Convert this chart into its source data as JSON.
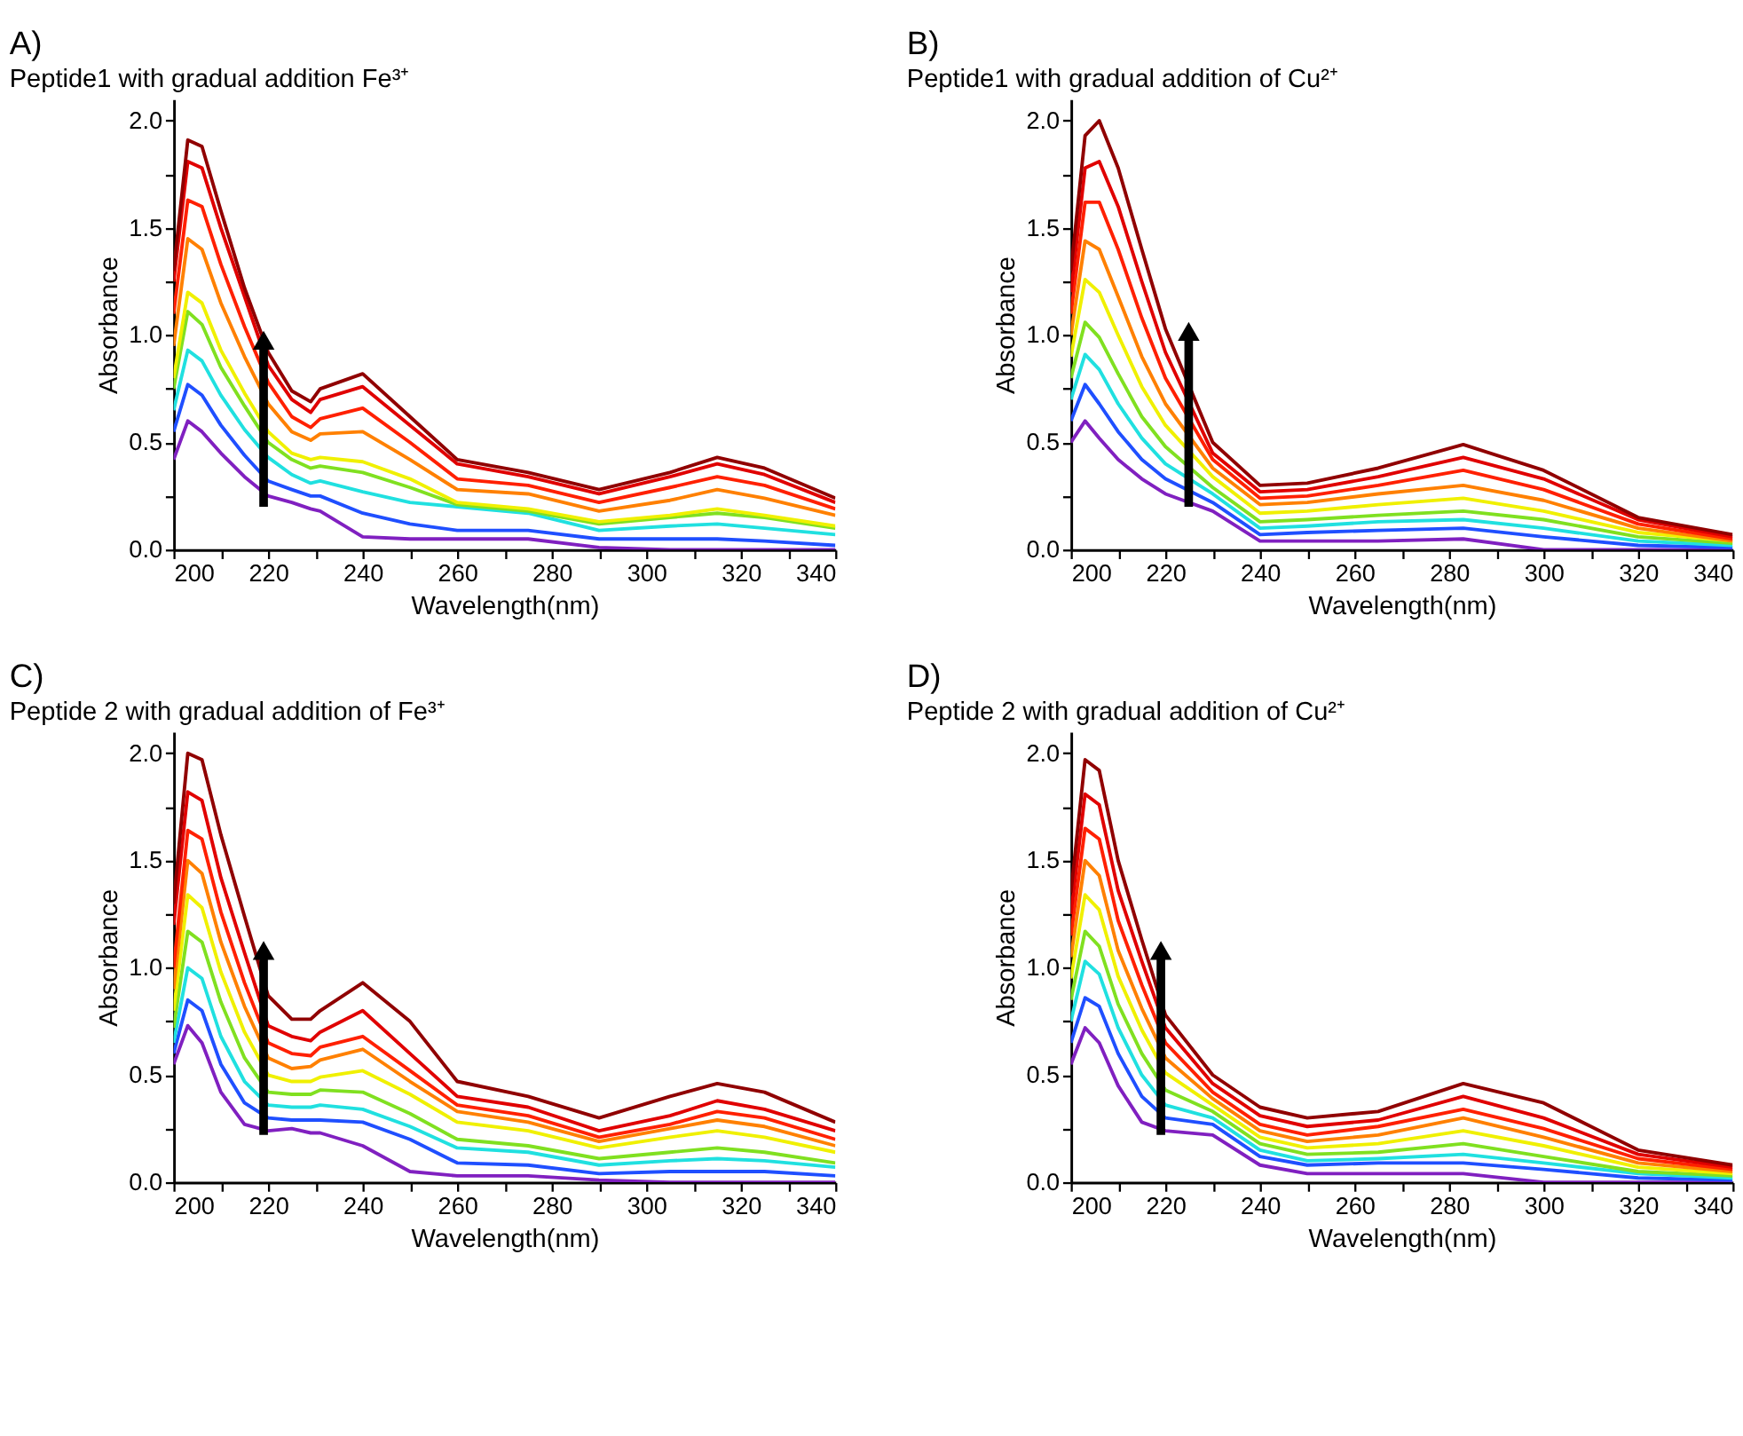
{
  "chart_data": [
    {
      "type": "line",
      "title": "A)",
      "subtitle": "Peptide1 with gradual addition Fe³⁺",
      "xlabel": "Wavelength(nm)",
      "ylabel": "Absorbance",
      "grid": false,
      "xlim": [
        200,
        340
      ],
      "ylim": [
        0,
        2.1
      ],
      "xticks": [
        200,
        {
          "value": 210,
          "label": null
        },
        220,
        {
          "value": 230,
          "label": null
        },
        240,
        {
          "value": 250,
          "label": null
        },
        260,
        {
          "value": 270,
          "label": null
        },
        280,
        {
          "value": 290,
          "label": null
        },
        300,
        {
          "value": 310,
          "label": null
        },
        320,
        {
          "value": 330,
          "label": null
        },
        340
      ],
      "yticks": [
        {
          "value": 0,
          "label": "0.0"
        },
        {
          "value": 0.25,
          "label": null
        },
        {
          "value": 0.5,
          "label": "0.5"
        },
        {
          "value": 0.75,
          "label": null
        },
        {
          "value": 1,
          "label": "1.0"
        },
        {
          "value": 1.25,
          "label": null
        },
        {
          "value": 1.5,
          "label": "1.5"
        },
        {
          "value": 1.75,
          "label": null
        },
        {
          "value": 2,
          "label": "2.0"
        }
      ],
      "x": [
        200,
        203,
        206,
        210,
        215,
        220,
        225,
        229,
        231,
        240,
        250,
        260,
        275,
        290,
        305,
        315,
        325,
        340
      ],
      "series": [
        {
          "color": "#8020c0",
          "values": [
            0.42,
            0.6,
            0.55,
            0.45,
            0.34,
            0.25,
            0.22,
            0.19,
            0.18,
            0.06,
            0.05,
            0.05,
            0.05,
            0.01,
            0,
            0,
            0,
            0
          ]
        },
        {
          "color": "#1f4fff",
          "values": [
            0.55,
            0.77,
            0.72,
            0.58,
            0.44,
            0.32,
            0.28,
            0.25,
            0.25,
            0.17,
            0.12,
            0.09,
            0.09,
            0.05,
            0.05,
            0.05,
            0.04,
            0.02
          ]
        },
        {
          "color": "#20e0e0",
          "values": [
            0.65,
            0.93,
            0.88,
            0.72,
            0.56,
            0.43,
            0.35,
            0.31,
            0.32,
            0.27,
            0.22,
            0.2,
            0.17,
            0.09,
            0.11,
            0.12,
            0.1,
            0.07
          ]
        },
        {
          "color": "#80e020",
          "values": [
            0.75,
            1.11,
            1.05,
            0.85,
            0.67,
            0.5,
            0.42,
            0.38,
            0.39,
            0.36,
            0.29,
            0.21,
            0.18,
            0.12,
            0.15,
            0.17,
            0.15,
            0.1
          ]
        },
        {
          "color": "#f0f000",
          "values": [
            0.8,
            1.2,
            1.15,
            0.93,
            0.73,
            0.55,
            0.45,
            0.42,
            0.43,
            0.41,
            0.33,
            0.22,
            0.19,
            0.13,
            0.16,
            0.19,
            0.16,
            0.11
          ]
        },
        {
          "color": "#ff8000",
          "values": [
            0.95,
            1.45,
            1.4,
            1.15,
            0.9,
            0.68,
            0.55,
            0.51,
            0.54,
            0.55,
            0.42,
            0.28,
            0.26,
            0.18,
            0.23,
            0.28,
            0.24,
            0.16
          ]
        },
        {
          "color": "#ff2000",
          "values": [
            1.1,
            1.63,
            1.6,
            1.33,
            1.04,
            0.78,
            0.62,
            0.57,
            0.61,
            0.66,
            0.5,
            0.33,
            0.3,
            0.22,
            0.29,
            0.34,
            0.3,
            0.19
          ]
        },
        {
          "color": "#e00000",
          "values": [
            1.25,
            1.81,
            1.78,
            1.5,
            1.18,
            0.86,
            0.7,
            0.64,
            0.7,
            0.76,
            0.58,
            0.4,
            0.34,
            0.26,
            0.34,
            0.4,
            0.35,
            0.22
          ]
        },
        {
          "color": "#900000",
          "values": [
            1.3,
            1.91,
            1.88,
            1.58,
            1.22,
            0.92,
            0.74,
            0.69,
            0.75,
            0.82,
            0.62,
            0.42,
            0.36,
            0.28,
            0.36,
            0.43,
            0.38,
            0.24
          ]
        }
      ]
    },
    {
      "type": "line",
      "title": "B)",
      "subtitle": "Peptide1 with gradual addition of Cu²⁺",
      "xlabel": "Wavelength(nm)",
      "ylabel": "Absorbance",
      "grid": false,
      "xlim": [
        200,
        340
      ],
      "ylim": [
        0,
        2.1
      ],
      "xticks": [
        200,
        {
          "value": 210,
          "label": null
        },
        220,
        {
          "value": 230,
          "label": null
        },
        240,
        {
          "value": 250,
          "label": null
        },
        260,
        {
          "value": 270,
          "label": null
        },
        280,
        {
          "value": 290,
          "label": null
        },
        300,
        {
          "value": 310,
          "label": null
        },
        320,
        {
          "value": 330,
          "label": null
        },
        340
      ],
      "yticks": [
        {
          "value": 0,
          "label": "0.0"
        },
        {
          "value": 0.25,
          "label": null
        },
        {
          "value": 0.5,
          "label": "0.5"
        },
        {
          "value": 0.75,
          "label": null
        },
        {
          "value": 1,
          "label": "1.0"
        },
        {
          "value": 1.25,
          "label": null
        },
        {
          "value": 1.5,
          "label": "1.5"
        },
        {
          "value": 1.75,
          "label": null
        },
        {
          "value": 2,
          "label": "2.0"
        }
      ],
      "x": [
        200,
        203,
        206,
        210,
        215,
        220,
        230,
        240,
        250,
        265,
        283,
        300,
        320,
        340
      ],
      "series": [
        {
          "color": "#8020c0",
          "values": [
            0.5,
            0.6,
            0.52,
            0.42,
            0.33,
            0.26,
            0.18,
            0.04,
            0.04,
            0.04,
            0.05,
            0,
            0,
            0
          ]
        },
        {
          "color": "#1f4fff",
          "values": [
            0.6,
            0.77,
            0.68,
            0.55,
            0.42,
            0.33,
            0.22,
            0.07,
            0.08,
            0.09,
            0.1,
            0.06,
            0.02,
            0.01
          ]
        },
        {
          "color": "#20e0e0",
          "values": [
            0.7,
            0.91,
            0.84,
            0.68,
            0.52,
            0.4,
            0.26,
            0.1,
            0.11,
            0.13,
            0.14,
            0.1,
            0.04,
            0.02
          ]
        },
        {
          "color": "#80e020",
          "values": [
            0.8,
            1.06,
            0.99,
            0.82,
            0.62,
            0.48,
            0.29,
            0.13,
            0.14,
            0.16,
            0.18,
            0.14,
            0.06,
            0.03
          ]
        },
        {
          "color": "#f0f000",
          "values": [
            0.9,
            1.26,
            1.2,
            1.0,
            0.76,
            0.58,
            0.34,
            0.17,
            0.18,
            0.21,
            0.24,
            0.18,
            0.08,
            0.04
          ]
        },
        {
          "color": "#ff8000",
          "values": [
            1.0,
            1.44,
            1.4,
            1.18,
            0.9,
            0.68,
            0.38,
            0.21,
            0.22,
            0.26,
            0.3,
            0.23,
            0.1,
            0.04
          ]
        },
        {
          "color": "#ff2000",
          "values": [
            1.1,
            1.62,
            1.62,
            1.4,
            1.08,
            0.8,
            0.42,
            0.24,
            0.25,
            0.3,
            0.37,
            0.28,
            0.12,
            0.05
          ]
        },
        {
          "color": "#e00000",
          "values": [
            1.2,
            1.78,
            1.81,
            1.6,
            1.25,
            0.92,
            0.45,
            0.27,
            0.28,
            0.34,
            0.43,
            0.33,
            0.14,
            0.06
          ]
        },
        {
          "color": "#900000",
          "values": [
            1.3,
            1.93,
            2.0,
            1.78,
            1.4,
            1.03,
            0.5,
            0.3,
            0.31,
            0.38,
            0.49,
            0.37,
            0.15,
            0.07
          ]
        }
      ]
    },
    {
      "type": "line",
      "title": "C)",
      "subtitle": "Peptide 2 with gradual addition of Fe³⁺",
      "xlabel": "Wavelength(nm)",
      "ylabel": "Absorbance",
      "grid": false,
      "xlim": [
        200,
        340
      ],
      "ylim": [
        0,
        2.1
      ],
      "xticks": [
        200,
        {
          "value": 210,
          "label": null
        },
        220,
        {
          "value": 230,
          "label": null
        },
        240,
        {
          "value": 250,
          "label": null
        },
        260,
        {
          "value": 270,
          "label": null
        },
        280,
        {
          "value": 290,
          "label": null
        },
        300,
        {
          "value": 310,
          "label": null
        },
        320,
        {
          "value": 330,
          "label": null
        },
        340
      ],
      "yticks": [
        {
          "value": 0,
          "label": "0.0"
        },
        {
          "value": 0.25,
          "label": null
        },
        {
          "value": 0.5,
          "label": "0.5"
        },
        {
          "value": 0.75,
          "label": null
        },
        {
          "value": 1,
          "label": "1.0"
        },
        {
          "value": 1.25,
          "label": null
        },
        {
          "value": 1.5,
          "label": "1.5"
        },
        {
          "value": 1.75,
          "label": null
        },
        {
          "value": 2,
          "label": "2.0"
        }
      ],
      "x": [
        200,
        203,
        206,
        210,
        215,
        220,
        225,
        229,
        231,
        240,
        250,
        260,
        275,
        290,
        305,
        315,
        325,
        340
      ],
      "series": [
        {
          "color": "#8020c0",
          "values": [
            0.55,
            0.73,
            0.65,
            0.42,
            0.27,
            0.24,
            0.25,
            0.23,
            0.23,
            0.17,
            0.05,
            0.03,
            0.03,
            0.01,
            0,
            0,
            0,
            0
          ]
        },
        {
          "color": "#1f4fff",
          "values": [
            0.6,
            0.85,
            0.8,
            0.55,
            0.37,
            0.3,
            0.29,
            0.29,
            0.29,
            0.28,
            0.2,
            0.09,
            0.08,
            0.04,
            0.05,
            0.05,
            0.05,
            0.03
          ]
        },
        {
          "color": "#20e0e0",
          "values": [
            0.65,
            1.0,
            0.95,
            0.68,
            0.47,
            0.36,
            0.35,
            0.35,
            0.36,
            0.34,
            0.26,
            0.16,
            0.14,
            0.08,
            0.1,
            0.11,
            0.1,
            0.07
          ]
        },
        {
          "color": "#80e020",
          "values": [
            0.72,
            1.17,
            1.12,
            0.84,
            0.58,
            0.42,
            0.41,
            0.41,
            0.43,
            0.42,
            0.32,
            0.2,
            0.17,
            0.11,
            0.14,
            0.16,
            0.14,
            0.09
          ]
        },
        {
          "color": "#f0f000",
          "values": [
            0.8,
            1.34,
            1.28,
            0.98,
            0.7,
            0.5,
            0.47,
            0.47,
            0.49,
            0.52,
            0.41,
            0.28,
            0.24,
            0.16,
            0.21,
            0.24,
            0.21,
            0.14
          ]
        },
        {
          "color": "#ff8000",
          "values": [
            0.9,
            1.5,
            1.44,
            1.12,
            0.82,
            0.58,
            0.53,
            0.54,
            0.57,
            0.62,
            0.47,
            0.33,
            0.28,
            0.19,
            0.25,
            0.29,
            0.26,
            0.17
          ]
        },
        {
          "color": "#ff2000",
          "values": [
            1.0,
            1.64,
            1.6,
            1.26,
            0.93,
            0.65,
            0.6,
            0.59,
            0.63,
            0.68,
            0.52,
            0.36,
            0.31,
            0.21,
            0.27,
            0.33,
            0.3,
            0.2
          ]
        },
        {
          "color": "#e00000",
          "values": [
            1.2,
            1.82,
            1.78,
            1.42,
            1.07,
            0.73,
            0.68,
            0.66,
            0.7,
            0.8,
            0.6,
            0.4,
            0.35,
            0.24,
            0.31,
            0.38,
            0.34,
            0.24
          ]
        },
        {
          "color": "#900000",
          "values": [
            1.3,
            2.0,
            1.97,
            1.62,
            1.24,
            0.87,
            0.76,
            0.76,
            0.8,
            0.93,
            0.75,
            0.47,
            0.4,
            0.3,
            0.4,
            0.46,
            0.42,
            0.28
          ]
        }
      ]
    },
    {
      "type": "line",
      "title": "D)",
      "subtitle": "Peptide 2 with gradual addition of Cu²⁺",
      "xlabel": "Wavelength(nm)",
      "ylabel": "Absorbance",
      "grid": false,
      "xlim": [
        200,
        340
      ],
      "ylim": [
        0,
        2.1
      ],
      "xticks": [
        200,
        {
          "value": 210,
          "label": null
        },
        220,
        {
          "value": 230,
          "label": null
        },
        240,
        {
          "value": 250,
          "label": null
        },
        260,
        {
          "value": 270,
          "label": null
        },
        280,
        {
          "value": 290,
          "label": null
        },
        300,
        {
          "value": 310,
          "label": null
        },
        320,
        {
          "value": 330,
          "label": null
        },
        340
      ],
      "yticks": [
        {
          "value": 0,
          "label": "0.0"
        },
        {
          "value": 0.25,
          "label": null
        },
        {
          "value": 0.5,
          "label": "0.5"
        },
        {
          "value": 0.75,
          "label": null
        },
        {
          "value": 1,
          "label": "1.0"
        },
        {
          "value": 1.25,
          "label": null
        },
        {
          "value": 1.5,
          "label": "1.5"
        },
        {
          "value": 1.75,
          "label": null
        },
        {
          "value": 2,
          "label": "2.0"
        }
      ],
      "x": [
        200,
        203,
        206,
        210,
        215,
        220,
        230,
        240,
        250,
        265,
        283,
        300,
        320,
        340
      ],
      "series": [
        {
          "color": "#8020c0",
          "values": [
            0.55,
            0.72,
            0.65,
            0.45,
            0.28,
            0.24,
            0.22,
            0.08,
            0.04,
            0.04,
            0.04,
            0,
            0,
            0
          ]
        },
        {
          "color": "#1f4fff",
          "values": [
            0.65,
            0.86,
            0.82,
            0.6,
            0.4,
            0.3,
            0.27,
            0.12,
            0.08,
            0.09,
            0.09,
            0.06,
            0.02,
            0.01
          ]
        },
        {
          "color": "#20e0e0",
          "values": [
            0.75,
            1.03,
            0.97,
            0.72,
            0.5,
            0.36,
            0.3,
            0.15,
            0.1,
            0.11,
            0.13,
            0.09,
            0.04,
            0.02
          ]
        },
        {
          "color": "#80e020",
          "values": [
            0.85,
            1.17,
            1.1,
            0.83,
            0.6,
            0.43,
            0.33,
            0.18,
            0.13,
            0.14,
            0.18,
            0.12,
            0.05,
            0.03
          ]
        },
        {
          "color": "#f0f000",
          "values": [
            0.95,
            1.34,
            1.27,
            0.96,
            0.71,
            0.51,
            0.36,
            0.21,
            0.16,
            0.18,
            0.24,
            0.17,
            0.07,
            0.04
          ]
        },
        {
          "color": "#ff8000",
          "values": [
            1.05,
            1.5,
            1.43,
            1.08,
            0.81,
            0.58,
            0.39,
            0.24,
            0.19,
            0.22,
            0.3,
            0.21,
            0.09,
            0.05
          ]
        },
        {
          "color": "#ff2000",
          "values": [
            1.15,
            1.65,
            1.6,
            1.22,
            0.92,
            0.65,
            0.42,
            0.27,
            0.22,
            0.26,
            0.34,
            0.25,
            0.11,
            0.06
          ]
        },
        {
          "color": "#e00000",
          "values": [
            1.25,
            1.81,
            1.76,
            1.36,
            1.03,
            0.72,
            0.46,
            0.31,
            0.26,
            0.29,
            0.4,
            0.3,
            0.13,
            0.07
          ]
        },
        {
          "color": "#900000",
          "values": [
            1.35,
            1.97,
            1.92,
            1.5,
            1.13,
            0.78,
            0.5,
            0.35,
            0.3,
            0.33,
            0.46,
            0.37,
            0.15,
            0.08
          ]
        }
      ]
    }
  ]
}
